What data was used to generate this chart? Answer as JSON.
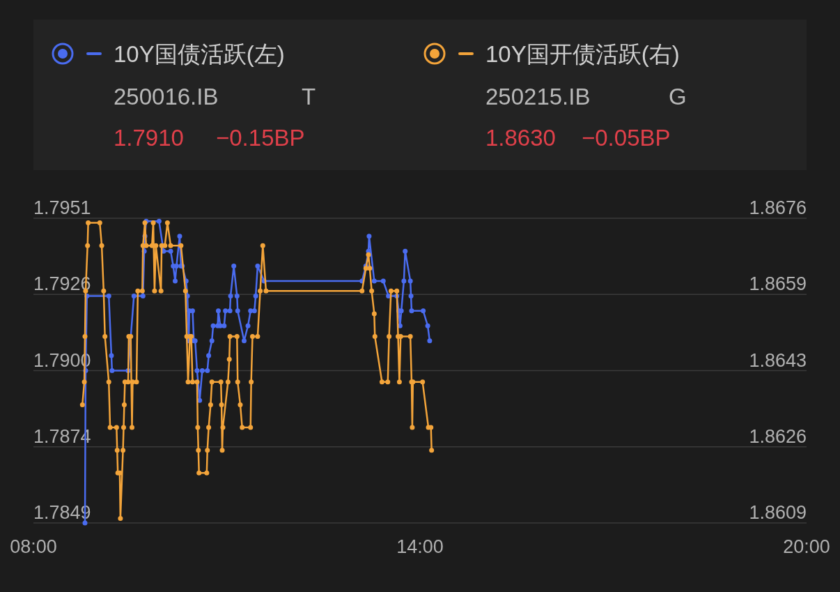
{
  "chart_data": {
    "type": "line",
    "marker": "circle",
    "grid": "y",
    "legend": "top",
    "xlim": [
      8,
      20
    ],
    "xticks": [
      {
        "value": 8,
        "label": "08:00"
      },
      {
        "value": 14,
        "label": "14:00"
      },
      {
        "value": 20,
        "label": "20:00"
      }
    ],
    "ylim": [
      1.7849,
      1.7951
    ],
    "yticks": [
      1.7849,
      {
        "value": 1.78745,
        "label": "1.7874"
      },
      {
        "value": 1.79,
        "label": "1.7900"
      },
      {
        "value": 1.79255,
        "label": "1.7926"
      },
      1.7951
    ],
    "y2lim": [
      1.8609,
      1.8676
    ],
    "y2ticks": [
      1.8609,
      {
        "value": 1.862575,
        "label": "1.8626"
      },
      {
        "value": 1.86425,
        "label": "1.8643"
      },
      {
        "value": 1.865925,
        "label": "1.8659"
      },
      1.8676
    ],
    "annotations": [
      "250016.IB",
      "T",
      "1.7910",
      "−0.15BP",
      "250215.IB",
      "G",
      "1.8630",
      "−0.05BP"
    ],
    "series": [
      {
        "name": "10Y国债活跃(左)",
        "color": "#4a6cf0",
        "x": [
          8.8,
          8.81,
          8.83,
          9.17,
          9.21,
          9.22,
          9.47,
          9.56,
          9.7,
          9.72,
          9.73,
          9.75,
          9.95,
          10.02,
          10.13,
          10.17,
          10.2,
          10.22,
          10.27,
          10.29,
          10.31,
          10.37,
          10.39,
          10.41,
          10.42,
          10.47,
          10.49,
          10.51,
          10.54,
          10.58,
          10.62,
          10.7,
          10.72,
          10.77,
          10.79,
          10.86,
          10.87,
          10.9,
          10.96,
          10.98,
          11.05,
          11.06,
          11.11,
          11.16,
          11.17,
          11.27,
          11.33,
          11.37,
          11.43,
          11.45,
          11.48,
          11.58,
          13.1,
          13.16,
          13.2,
          13.21,
          13.29,
          13.43,
          13.51,
          13.64,
          13.67,
          13.69,
          13.71,
          13.75,
          13.77,
          13.85,
          13.86,
          13.87,
          14.05,
          14.12,
          14.15
        ],
        "values": [
          1.7849,
          1.79,
          1.7925,
          1.7925,
          1.7905,
          1.79,
          1.79,
          1.7925,
          1.7925,
          1.794,
          1.7945,
          1.795,
          1.795,
          1.794,
          1.794,
          1.7935,
          1.793,
          1.7935,
          1.7945,
          1.7935,
          1.7935,
          1.793,
          1.7925,
          1.791,
          1.792,
          1.792,
          1.791,
          1.791,
          1.79,
          1.789,
          1.79,
          1.79,
          1.7905,
          1.791,
          1.7915,
          1.7915,
          1.792,
          1.7915,
          1.7915,
          1.792,
          1.792,
          1.7925,
          1.7935,
          1.7925,
          1.792,
          1.791,
          1.7915,
          1.792,
          1.792,
          1.7925,
          1.7935,
          1.793,
          1.793,
          1.7935,
          1.794,
          1.7945,
          1.793,
          1.793,
          1.7925,
          1.7925,
          1.792,
          1.7915,
          1.792,
          1.793,
          1.794,
          1.793,
          1.7925,
          1.792,
          1.792,
          1.7915,
          1.791
        ]
      },
      {
        "name": "10Y国开债活跃(右)",
        "color": "#f3a43a",
        "axis": "y2",
        "x": [
          8.76,
          8.79,
          8.8,
          8.81,
          8.84,
          8.85,
          9.03,
          9.06,
          9.09,
          9.11,
          9.17,
          9.19,
          9.29,
          9.3,
          9.31,
          9.34,
          9.35,
          9.39,
          9.4,
          9.41,
          9.42,
          9.47,
          9.48,
          9.51,
          9.53,
          9.54,
          9.6,
          9.62,
          9.69,
          9.7,
          9.73,
          9.75,
          9.84,
          9.86,
          9.88,
          9.9,
          9.98,
          9.99,
          10.04,
          10.08,
          10.13,
          10.29,
          10.36,
          10.38,
          10.4,
          10.43,
          10.45,
          10.47,
          10.54,
          10.55,
          10.56,
          10.57,
          10.69,
          10.7,
          10.72,
          10.75,
          10.77,
          10.91,
          10.92,
          10.93,
          10.94,
          11.02,
          11.04,
          11.05,
          11.16,
          11.17,
          11.21,
          11.24,
          11.37,
          11.38,
          11.4,
          11.48,
          11.52,
          11.56,
          11.61,
          13.1,
          13.16,
          13.2,
          13.22,
          13.25,
          13.29,
          13.3,
          13.41,
          13.5,
          13.52,
          13.55,
          13.64,
          13.66,
          13.68,
          13.7,
          13.85,
          13.87,
          13.88,
          13.89,
          14.04,
          14.13,
          14.17,
          14.18
        ],
        "values": [
          1.8635,
          1.864,
          1.865,
          1.866,
          1.867,
          1.8675,
          1.8675,
          1.867,
          1.866,
          1.865,
          1.864,
          1.863,
          1.863,
          1.8625,
          1.862,
          1.862,
          1.861,
          1.8625,
          1.863,
          1.8635,
          1.864,
          1.864,
          1.865,
          1.865,
          1.863,
          1.864,
          1.864,
          1.866,
          1.866,
          1.867,
          1.8675,
          1.867,
          1.867,
          1.8675,
          1.866,
          1.867,
          1.866,
          1.867,
          1.867,
          1.8675,
          1.867,
          1.867,
          1.866,
          1.865,
          1.864,
          1.865,
          1.865,
          1.864,
          1.864,
          1.863,
          1.8625,
          1.862,
          1.862,
          1.8625,
          1.863,
          1.8635,
          1.864,
          1.864,
          1.8635,
          1.8625,
          1.863,
          1.864,
          1.8645,
          1.865,
          1.865,
          1.864,
          1.8635,
          1.863,
          1.863,
          1.864,
          1.865,
          1.865,
          1.866,
          1.867,
          1.866,
          1.866,
          1.8665,
          1.8668,
          1.8665,
          1.866,
          1.8655,
          1.865,
          1.864,
          1.864,
          1.865,
          1.866,
          1.866,
          1.865,
          1.864,
          1.865,
          1.865,
          1.864,
          1.863,
          1.864,
          1.864,
          1.863,
          1.863,
          1.8625
        ]
      }
    ]
  }
}
